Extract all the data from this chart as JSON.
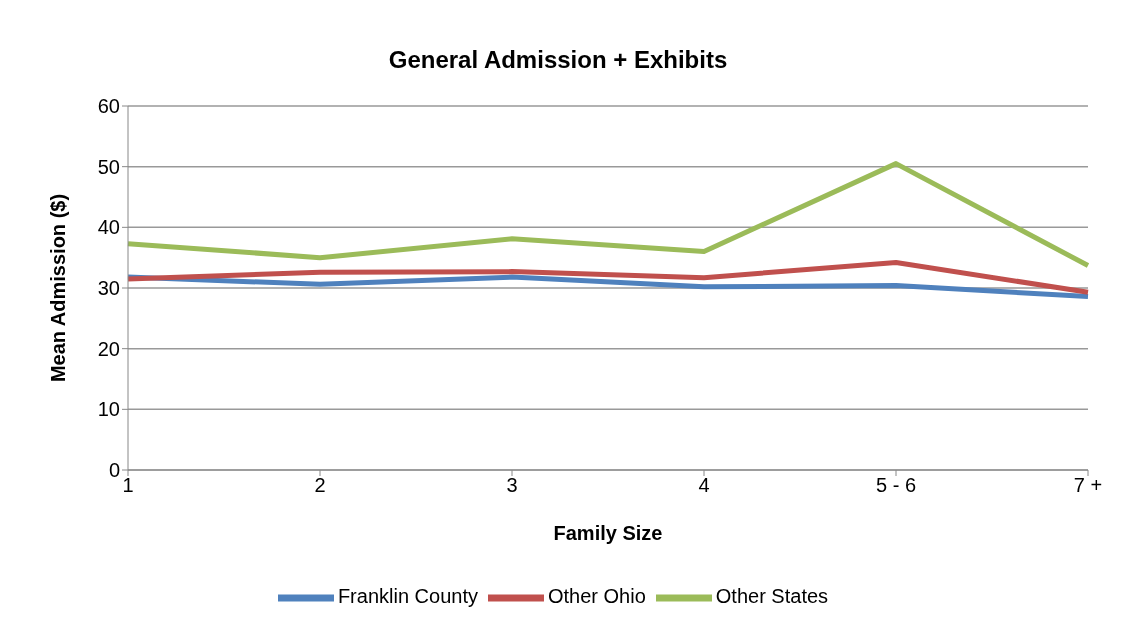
{
  "chart_data": {
    "type": "line",
    "title": "General Admission + Exhibits",
    "xlabel": "Family Size",
    "ylabel": "Mean Admission ($)",
    "categories": [
      "1",
      "2",
      "3",
      "4",
      "5 - 6",
      "7 +"
    ],
    "series": [
      {
        "name": "Franklin County",
        "color": "#4f81bd",
        "values": [
          31.8,
          30.6,
          31.8,
          30.2,
          30.4,
          28.6
        ]
      },
      {
        "name": "Other Ohio",
        "color": "#c0504d",
        "values": [
          31.5,
          32.6,
          32.7,
          31.7,
          34.2,
          29.3
        ]
      },
      {
        "name": "Other States",
        "color": "#9bbb59",
        "values": [
          37.3,
          35.0,
          38.1,
          36.0,
          50.5,
          33.7
        ]
      }
    ],
    "ylim": [
      0,
      60
    ],
    "yticks": [
      0,
      10,
      20,
      30,
      40,
      50,
      60
    ],
    "grid": "y",
    "legend": "bottom",
    "marker": "none",
    "line_style": "solid"
  }
}
